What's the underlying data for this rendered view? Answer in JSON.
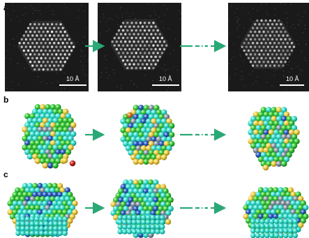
{
  "panels": {
    "a": {
      "label": "a",
      "scale_bar_label": "10 Å"
    },
    "b": {
      "label": "b"
    },
    "c": {
      "label": "c"
    }
  },
  "colors": {
    "stem_background": "#1a1a1a",
    "arrow": "#2aa876",
    "atom_cyan": "#3fe0d0",
    "atom_green": "#3ecf3e",
    "atom_yellow": "#f2d24a",
    "atom_blue": "#2c5fc6",
    "atom_orange": "#d9822b",
    "atom_red": "#d0281e",
    "atom_gray": "#8c9aa6"
  },
  "icons": {
    "arrow": "right-arrow-icon",
    "arrow_dotted": "right-arrow-dotted-icon"
  }
}
